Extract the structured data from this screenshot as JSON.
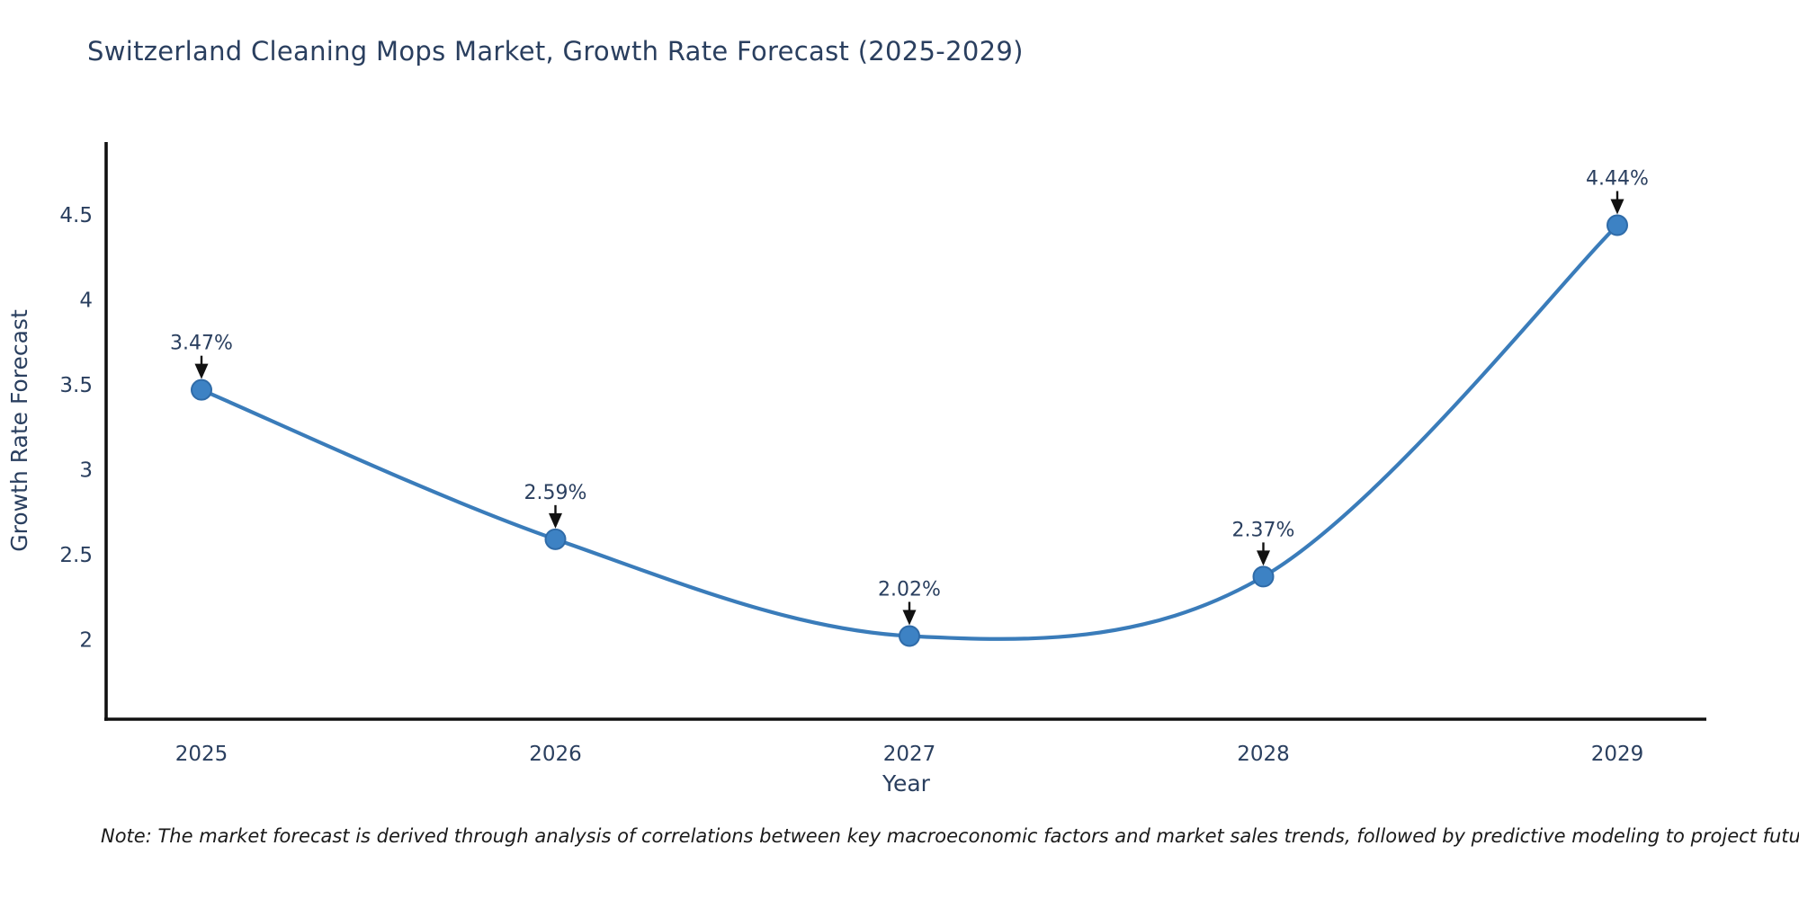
{
  "title": {
    "text": "Switzerland Cleaning Mops Market, Growth Rate Forecast (2025-2029)"
  },
  "note": {
    "text": "Note: The market forecast is derived through analysis of correlations between key macroeconomic factors and market sales trends, followed by predictive modeling to project future sales"
  },
  "chart_data": {
    "type": "line",
    "line_shape": "spline",
    "title": "Switzerland Cleaning Mops Market, Growth Rate Forecast (2025-2029)",
    "xlabel": "Year",
    "ylabel": "Growth Rate Forecast",
    "x": [
      "2025",
      "2026",
      "2027",
      "2028",
      "2029"
    ],
    "series": [
      {
        "name": "Growth Rate Forecast",
        "values": [
          3.47,
          2.59,
          2.02,
          2.37,
          4.44
        ]
      }
    ],
    "point_labels": [
      "3.47%",
      "2.59%",
      "2.02%",
      "2.37%",
      "4.44%"
    ],
    "x_tick_labels": [
      "2025",
      "2026",
      "2027",
      "2028",
      "2029"
    ],
    "y_tick_values": [
      2,
      2.5,
      3,
      3.5,
      4,
      4.5
    ],
    "y_tick_labels": [
      "2",
      "2.5",
      "3",
      "3.5",
      "4",
      "4.5"
    ],
    "ylim": [
      1.53,
      4.93
    ],
    "grid": false,
    "legend_position": "none",
    "colors": {
      "line": "#3a7cba",
      "marker_fill": "#3d82c4",
      "marker_edge": "#2f6ba8",
      "axis_line": "#111111",
      "tick_text": "#2a3f5f",
      "title_text": "#2a3f5f",
      "annotation_text": "#2a3f5f",
      "annotation_arrow": "#111111",
      "note_text": "#1a1a1a",
      "background": "#ffffff"
    }
  }
}
